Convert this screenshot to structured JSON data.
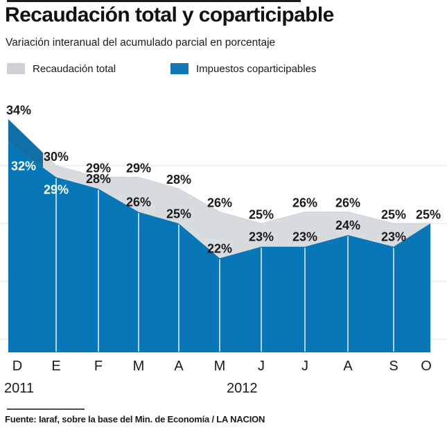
{
  "header": {
    "title": "Recaudación total y coparticipable",
    "subtitle": "Variación interanual del acumulado parcial en porcentaje"
  },
  "footer": {
    "source": "Fuente: Iaraf, sobre la base del Min. de Economía / LA NACION"
  },
  "chart_data": {
    "type": "area",
    "title": "Recaudación total y coparticipable",
    "subtitle": "Variación interanual del acumulado parcial en porcentaje",
    "x_labels": [
      "D",
      "E",
      "F",
      "M",
      "A",
      "M",
      "J",
      "J",
      "A",
      "S",
      "O"
    ],
    "x_year_labels": [
      "2011",
      "2012"
    ],
    "series": [
      {
        "name": "Recaudación total",
        "color": "#d8dcdf",
        "legend_swatch_color": "#ccd2d7",
        "values": [
          34,
          30,
          29,
          29,
          28,
          26,
          25,
          26,
          26,
          25,
          25
        ],
        "labels": [
          "34%",
          "30%",
          "29%",
          "29%",
          "28%",
          "26%",
          "25%",
          "26%",
          "26%",
          "25%",
          "25%"
        ]
      },
      {
        "name": "Impuestos coparticipables",
        "color": "#0777b7",
        "legend_swatch_color": "#1377b7",
        "values": [
          32,
          29,
          28,
          26,
          25,
          22,
          23,
          23,
          24,
          23,
          25
        ],
        "labels": [
          "32%",
          "29%",
          "28%",
          "26%",
          "25%",
          "22%",
          "23%",
          "23%",
          "24%",
          "23%",
          ""
        ]
      }
    ],
    "value_label_colors": {
      "total": [
        "#1a1a1a",
        "#1a1a1a",
        "#1a1a1a",
        "#1a1a1a",
        "#1a1a1a",
        "#1a1a1a",
        "#1a1a1a",
        "#1a1a1a",
        "#1a1a1a",
        "#1a1a1a",
        "#1a1a1a"
      ],
      "copart": [
        "#ffffff",
        "#ffffff",
        "#1a1a1a",
        "#1a1a1a",
        "#1a1a1a",
        "#1a1a1a",
        "#1a1a1a",
        "#1a1a1a",
        "#1a1a1a",
        "#1a1a1a",
        "#1a1a1a"
      ]
    },
    "gridline_values": [
      30,
      25,
      20,
      15
    ],
    "axis_range_pct": [
      14,
      34
    ],
    "grid": "horizontal, light gray, behind areas",
    "legend_position": "top-left, above chart"
  }
}
